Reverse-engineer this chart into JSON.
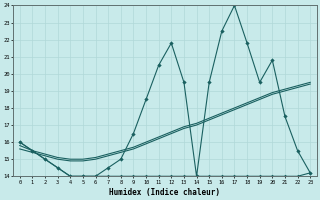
{
  "xlabel": "Humidex (Indice chaleur)",
  "background_color": "#c8eaea",
  "grid_color": "#b0d8d8",
  "line_color": "#1a6060",
  "x_main": [
    0,
    1,
    2,
    3,
    4,
    5,
    6,
    7,
    8,
    9,
    10,
    11,
    12,
    13,
    14,
    15,
    16,
    17,
    18,
    19,
    20,
    21,
    22,
    23
  ],
  "y_main": [
    16,
    15.5,
    15,
    14.5,
    14,
    14,
    14,
    14.5,
    15,
    16.5,
    18.5,
    20.5,
    21.8,
    19.5,
    14,
    19.5,
    22.5,
    24,
    21.8,
    19.5,
    20.8,
    17.5,
    15.5,
    14.2
  ],
  "y_line1": [
    15.8,
    15.5,
    15.3,
    15.1,
    15.0,
    15.0,
    15.1,
    15.3,
    15.5,
    15.7,
    16.0,
    16.3,
    16.6,
    16.9,
    17.1,
    17.4,
    17.7,
    18.0,
    18.3,
    18.6,
    18.9,
    19.1,
    19.3,
    19.5
  ],
  "y_line2": [
    15.6,
    15.4,
    15.2,
    15.0,
    14.9,
    14.9,
    15.0,
    15.2,
    15.4,
    15.6,
    15.9,
    16.2,
    16.5,
    16.8,
    17.0,
    17.3,
    17.6,
    17.9,
    18.2,
    18.5,
    18.8,
    19.0,
    19.2,
    19.4
  ],
  "y_flat": [
    16.0,
    15.5,
    15.0,
    14.5,
    14.0,
    14.0,
    14.0,
    14.0,
    14.0,
    14.0,
    14.0,
    14.0,
    14.0,
    14.0,
    14.0,
    14.0,
    14.0,
    14.0,
    14.0,
    14.0,
    14.0,
    14.0,
    14.0,
    14.2
  ],
  "ylim": [
    14,
    24
  ],
  "xlim": [
    -0.5,
    23.5
  ],
  "yticks": [
    14,
    15,
    16,
    17,
    18,
    19,
    20,
    21,
    22,
    23,
    24
  ],
  "xticks": [
    0,
    1,
    2,
    3,
    4,
    5,
    6,
    7,
    8,
    9,
    10,
    11,
    12,
    13,
    14,
    15,
    16,
    17,
    18,
    19,
    20,
    21,
    22,
    23
  ]
}
